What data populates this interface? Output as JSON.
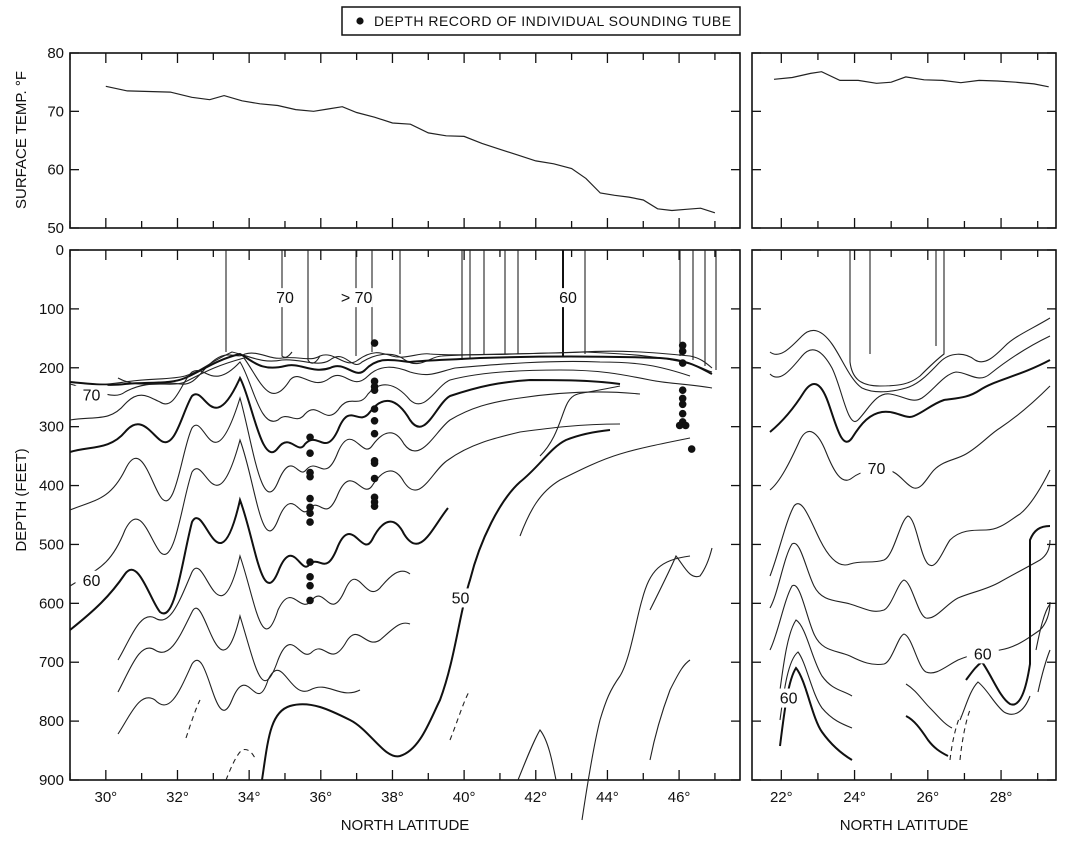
{
  "legend": {
    "label": "DEPTH RECORD OF INDIVIDUAL SOUNDING TUBE",
    "marker": "filled-circle"
  },
  "chart_data": [
    {
      "id": "surface-left",
      "type": "line",
      "ylabel": "SURFACE TEMP. °F",
      "xlim": [
        29,
        47.7
      ],
      "ylim": [
        50,
        80
      ],
      "yticks": [
        50,
        60,
        70,
        80
      ],
      "x": [
        30.0,
        30.6,
        31.2,
        31.8,
        32.4,
        32.9,
        33.3,
        33.8,
        34.3,
        34.8,
        35.3,
        35.8,
        36.2,
        36.6,
        37.0,
        37.5,
        38.0,
        38.5,
        39.0,
        39.5,
        40.0,
        40.5,
        41.0,
        41.5,
        42.0,
        42.5,
        43.0,
        43.4,
        43.8,
        44.2,
        44.6,
        45.0,
        45.4,
        45.8,
        46.2,
        46.6,
        47.0
      ],
      "values": [
        74.3,
        73.5,
        73.4,
        73.3,
        72.4,
        72.0,
        72.7,
        71.8,
        71.3,
        71.0,
        70.3,
        70.0,
        70.4,
        70.8,
        69.8,
        69.0,
        68.0,
        67.8,
        66.3,
        65.8,
        65.7,
        64.5,
        63.5,
        62.5,
        61.5,
        61.0,
        60.2,
        58.5,
        56.0,
        55.6,
        55.3,
        54.8,
        53.3,
        53.0,
        53.2,
        53.4,
        52.6
      ]
    },
    {
      "id": "surface-right",
      "type": "line",
      "xlim": [
        21.2,
        29.5
      ],
      "ylim": [
        50,
        80
      ],
      "yticks": [
        50,
        60,
        70,
        80
      ],
      "x": [
        21.8,
        22.3,
        22.8,
        23.1,
        23.6,
        24.1,
        24.6,
        25.0,
        25.4,
        25.9,
        26.4,
        26.9,
        27.4,
        27.9,
        28.4,
        28.9,
        29.3
      ],
      "values": [
        75.5,
        75.8,
        76.5,
        76.8,
        75.3,
        75.3,
        74.8,
        75.0,
        75.9,
        75.4,
        75.3,
        74.9,
        75.3,
        75.2,
        75.0,
        74.7,
        74.2
      ]
    },
    {
      "id": "depth-left",
      "type": "contour",
      "xlabel": "NORTH LATITUDE",
      "ylabel": "DEPTH (FEET)",
      "xlim": [
        29,
        47.7
      ],
      "ylim": [
        900,
        0
      ],
      "xticks": [
        "30°",
        "32°",
        "34°",
        "36°",
        "38°",
        "40°",
        "42°",
        "44°",
        "46°"
      ],
      "xtick_values": [
        30,
        32,
        34,
        36,
        38,
        40,
        42,
        44,
        46
      ],
      "yticks": [
        0,
        100,
        200,
        300,
        400,
        500,
        600,
        700,
        800,
        900
      ],
      "labels": [
        {
          "text": "70",
          "x": 35.0,
          "y": 80
        },
        {
          "text": "> 70",
          "x": 37.0,
          "y": 80
        },
        {
          "text": "60",
          "x": 42.9,
          "y": 80
        },
        {
          "text": "70",
          "x": 29.6,
          "y": 245
        },
        {
          "text": "60",
          "x": 29.6,
          "y": 560
        },
        {
          "text": "50",
          "x": 39.9,
          "y": 590
        }
      ],
      "soundings": [
        {
          "lat": 35.7,
          "depths": [
            318,
            345,
            378,
            385,
            422,
            437,
            447,
            462,
            530,
            555,
            570,
            595
          ]
        },
        {
          "lat": 37.5,
          "depths": [
            158,
            223,
            232,
            238,
            270,
            290,
            312,
            358,
            362,
            388,
            420,
            428,
            435
          ]
        },
        {
          "lat": 46.1,
          "depths": [
            162,
            172,
            192,
            238,
            252,
            262,
            278,
            292,
            298,
            298,
            338
          ]
        }
      ]
    },
    {
      "id": "depth-right",
      "type": "contour",
      "xlabel": "NORTH LATITUDE",
      "xlim": [
        21.2,
        29.5
      ],
      "ylim": [
        900,
        0
      ],
      "xticks": [
        "22°",
        "24°",
        "26°",
        "28°"
      ],
      "xtick_values": [
        22,
        24,
        26,
        28
      ],
      "yticks": [
        0,
        100,
        200,
        300,
        400,
        500,
        600,
        700,
        800,
        900
      ],
      "labels": [
        {
          "text": "70",
          "x": 24.6,
          "y": 370
        },
        {
          "text": "60",
          "x": 27.5,
          "y": 685
        },
        {
          "text": "60",
          "x": 22.2,
          "y": 760
        }
      ]
    }
  ]
}
